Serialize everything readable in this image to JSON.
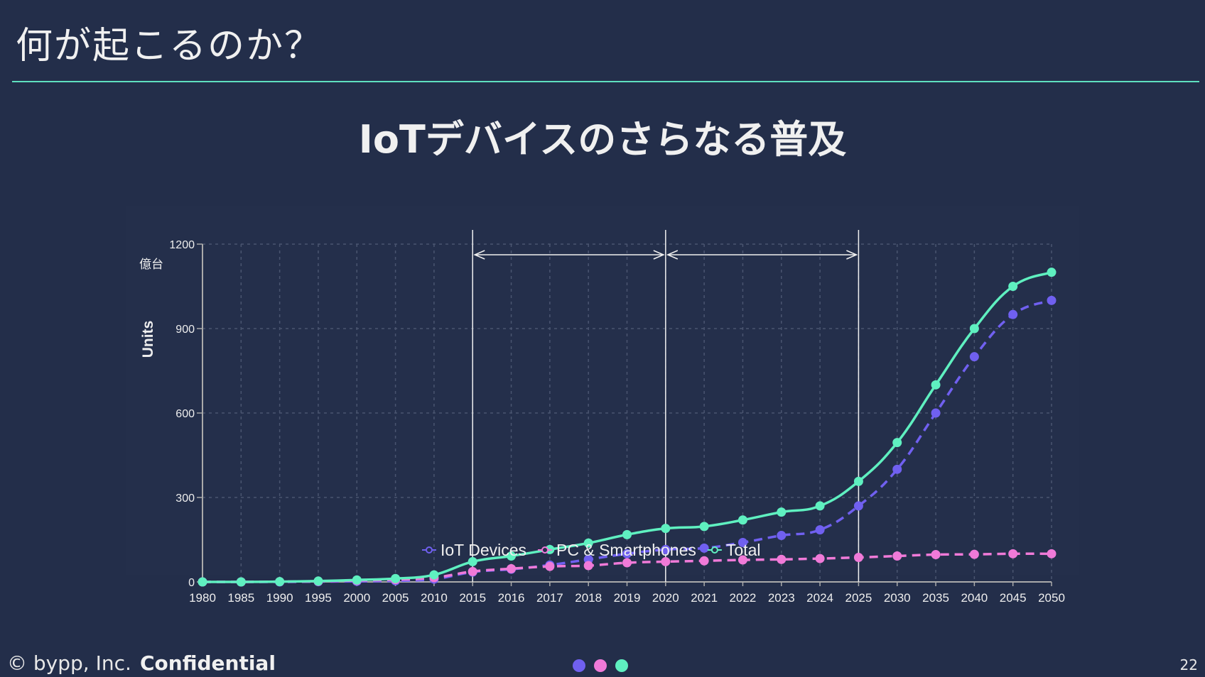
{
  "header": {
    "title": "何が起こるのか？",
    "subtitle": "IoTデバイスのさらなる普及"
  },
  "footer": {
    "copyright": "© bypp, Inc.",
    "confidential": "Confidential",
    "page_number": "22",
    "dot_colors": [
      "#7060f0",
      "#f07ad8",
      "#5ff0c0"
    ]
  },
  "chart_data": {
    "type": "line",
    "title": "",
    "xlabel": "",
    "ylabel": "Units",
    "unit_label": "億台",
    "ylim": [
      0,
      1200
    ],
    "yticks": [
      0,
      300,
      600,
      900,
      1200
    ],
    "grid": true,
    "legend_position": "bottom",
    "categories": [
      "1980",
      "1985",
      "1990",
      "1995",
      "2000",
      "2005",
      "2010",
      "2015",
      "2016",
      "2017",
      "2018",
      "2019",
      "2020",
      "2021",
      "2022",
      "2023",
      "2024",
      "2025",
      "2030",
      "2035",
      "2040",
      "2045",
      "2050"
    ],
    "series": [
      {
        "name": "IoT Devices",
        "color": "#7060f0",
        "dashed": true,
        "values": [
          0,
          0,
          0,
          1,
          2,
          4,
          10,
          35,
          45,
          60,
          80,
          100,
          115,
          120,
          140,
          165,
          185,
          270,
          400,
          600,
          800,
          950,
          1000
        ]
      },
      {
        "name": "PC & Smartphones",
        "color": "#f07ad8",
        "dashed": true,
        "values": [
          0,
          0,
          1,
          2,
          5,
          8,
          15,
          37,
          47,
          55,
          58,
          68,
          72,
          75,
          78,
          80,
          83,
          87,
          92,
          97,
          98,
          100,
          100
        ]
      },
      {
        "name": "Total",
        "color": "#5ff0c0",
        "dashed": false,
        "values": [
          0,
          0,
          1,
          3,
          7,
          12,
          25,
          72,
          92,
          115,
          138,
          168,
          190,
          197,
          220,
          248,
          270,
          357,
          495,
          700,
          900,
          1050,
          1100
        ]
      }
    ],
    "annotations": {
      "vertical_lines_at": [
        "2015",
        "2020",
        "2025"
      ],
      "double_arrows": [
        [
          "2015",
          "2020"
        ],
        [
          "2020",
          "2025"
        ]
      ]
    }
  }
}
